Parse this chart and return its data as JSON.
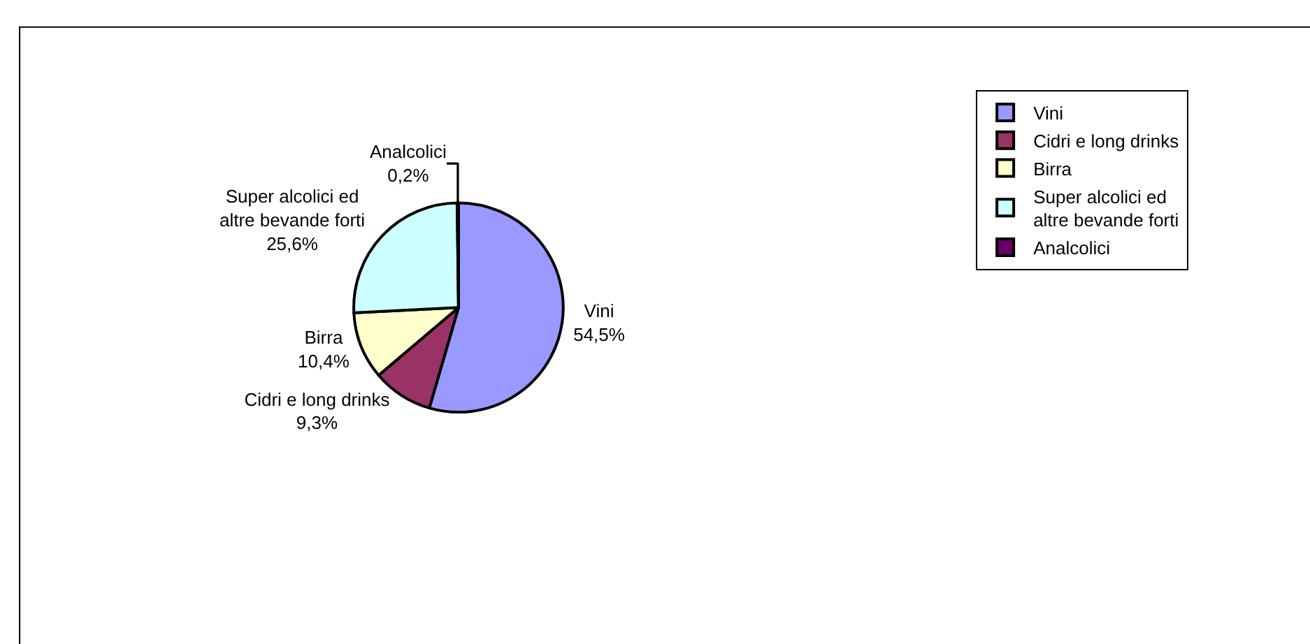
{
  "chart_data": {
    "type": "pie",
    "categories": [
      "Vini",
      "Cidri e long drinks",
      "Birra",
      "Super alcolici ed altre bevande forti",
      "Analcolici"
    ],
    "values": [
      54.5,
      9.3,
      10.4,
      25.6,
      0.2
    ],
    "value_labels": [
      "54,5%",
      "9,3%",
      "10,4%",
      "25,6%",
      "0,2%"
    ],
    "colors": [
      "#9999ff",
      "#993366",
      "#ffffcc",
      "#ccffff",
      "#660066"
    ],
    "legend": "right"
  }
}
